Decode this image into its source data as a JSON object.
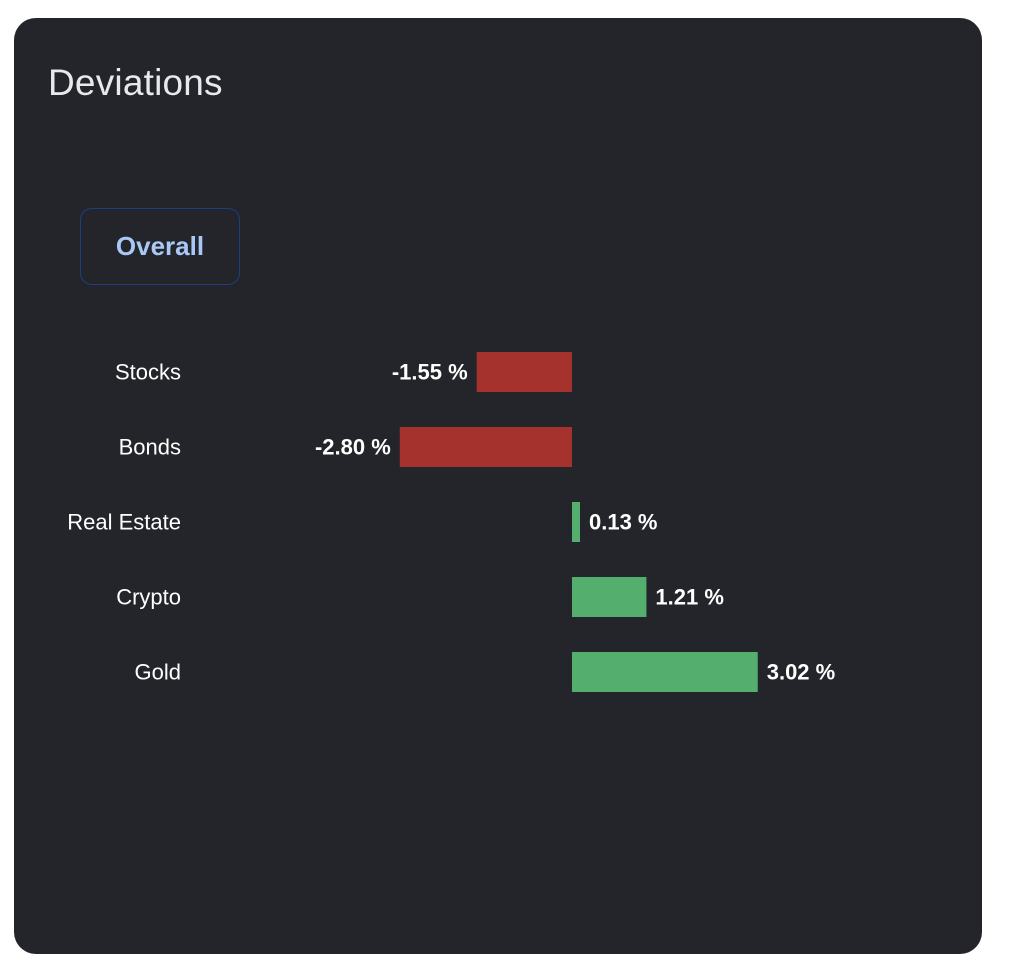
{
  "panel": {
    "title": "Deviations",
    "tab_label": "Overall"
  },
  "colors": {
    "negative": "#a5322d",
    "positive": "#54ae6d",
    "card_background": "#24252b",
    "tab_border": "#1f3e80",
    "tab_text": "#a9c8f5"
  },
  "chart_data": {
    "type": "bar",
    "orientation": "horizontal",
    "title": "",
    "xlabel": "",
    "ylabel": "",
    "xlim": [
      -4,
      4
    ],
    "categories": [
      "Stocks",
      "Bonds",
      "Real Estate",
      "Crypto",
      "Gold"
    ],
    "values": [
      -1.55,
      -2.8,
      0.13,
      1.21,
      3.02
    ],
    "value_labels": [
      "-1.55 %",
      "-2.80 %",
      "0.13 %",
      "1.21 %",
      "3.02 %"
    ],
    "grid": false,
    "legend": "none"
  }
}
